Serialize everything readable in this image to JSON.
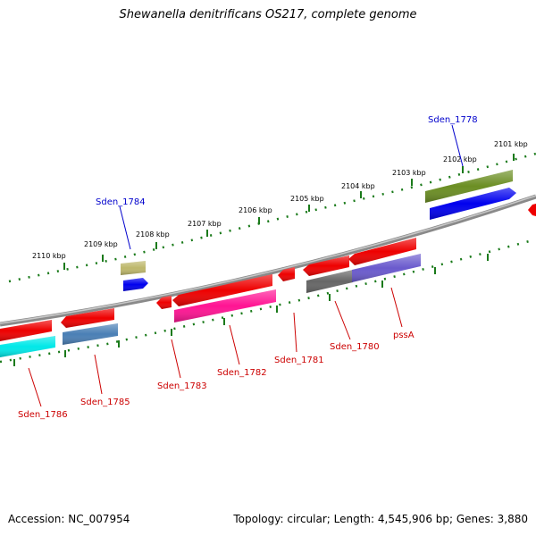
{
  "title": "Shewanella denitrificans OS217, complete genome",
  "footer": {
    "accession": "Accession: NC_007954",
    "summary": "Topology: circular; Length: 4,545,906 bp; Genes: 3,880"
  },
  "ticks": [
    "2110 kbp",
    "2109 kbp",
    "2108 kbp",
    "2107 kbp",
    "2106 kbp",
    "2105 kbp",
    "2104 kbp",
    "2103 kbp",
    "2102 kbp",
    "2101 kbp"
  ],
  "genes": [
    {
      "name": "Sden_1784",
      "color": "#0000cc"
    },
    {
      "name": "Sden_1778",
      "color": "#0000cc"
    },
    {
      "name": "Sden_1786",
      "color": "#cc0000"
    },
    {
      "name": "Sden_1785",
      "color": "#cc0000"
    },
    {
      "name": "Sden_1783",
      "color": "#cc0000"
    },
    {
      "name": "Sden_1782",
      "color": "#cc0000"
    },
    {
      "name": "Sden_1781",
      "color": "#cc0000"
    },
    {
      "name": "Sden_1780",
      "color": "#cc0000"
    },
    {
      "name": "pssA",
      "color": "#cc0000"
    }
  ],
  "colors": {
    "backbone": "#8a8a8a",
    "tick_dots": "#1a7a1a",
    "forward_red": "#ee0000",
    "reverse_blue": "#0000ee",
    "cyan": "#00e8e8",
    "steelblue": "#4a7fb5",
    "magenta": "#ff1493",
    "gray": "#666666",
    "slateblue": "#6a5acd",
    "olive": "#6b8e23",
    "khaki": "#bdb76b"
  }
}
